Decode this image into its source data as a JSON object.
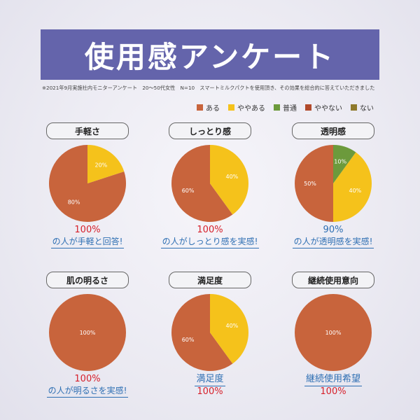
{
  "title": "使用感アンケート",
  "note": "※2021年9月実施社内モニターアンケート　20～50代女性　N=10　スマートミルクパクトを使用頂き、その効果を総合的に答えていただきました",
  "legend": [
    {
      "label": "ある",
      "color": "#c8643c"
    },
    {
      "label": "ややある",
      "color": "#f5c21b"
    },
    {
      "label": "普通",
      "color": "#6c9a3c"
    },
    {
      "label": "ややない",
      "color": "#b14a2b"
    },
    {
      "label": "ない",
      "color": "#8f7a2c"
    }
  ],
  "panels": [
    {
      "title": "手軽さ",
      "cap_a": "100%",
      "cap_b": "の人が手軽と回答!",
      "cap_a_class": "red",
      "cap_b_class": "blue"
    },
    {
      "title": "しっとり感",
      "cap_a": "100%",
      "cap_b": "の人がしっとり感を実感!",
      "cap_a_class": "red",
      "cap_b_class": "blue"
    },
    {
      "title": "透明感",
      "cap_a": "90%",
      "cap_b": "の人が透明感を実感!",
      "cap_a_class": "blue",
      "cap_b_class": "blue"
    },
    {
      "title": "肌の明るさ",
      "cap_a": "100%",
      "cap_b": "の人が明るさを実感!",
      "cap_a_class": "red",
      "cap_b_class": "blue"
    },
    {
      "title": "満足度",
      "cap_a": "満足度",
      "cap_b": "100%",
      "cap_a_class": "blue",
      "cap_b_class": "red"
    },
    {
      "title": "継続使用意向",
      "cap_a": "継続使用希望",
      "cap_b": "100%",
      "cap_a_class": "blue",
      "cap_b_class": "red"
    }
  ],
  "chart_data": [
    {
      "type": "pie",
      "title": "手軽さ",
      "categories": [
        "ある",
        "ややある"
      ],
      "values": [
        80,
        20
      ],
      "labels": [
        "80%",
        "20%"
      ],
      "colors": [
        "#c8643c",
        "#f5c21b"
      ]
    },
    {
      "type": "pie",
      "title": "しっとり感",
      "categories": [
        "ある",
        "ややある"
      ],
      "values": [
        60,
        40
      ],
      "labels": [
        "60%",
        "40%"
      ],
      "colors": [
        "#c8643c",
        "#f5c21b"
      ]
    },
    {
      "type": "pie",
      "title": "透明感",
      "categories": [
        "ある",
        "ややある",
        "普通"
      ],
      "values": [
        50,
        40,
        10
      ],
      "labels": [
        "50%",
        "40%",
        "10%"
      ],
      "colors": [
        "#c8643c",
        "#f5c21b",
        "#6c9a3c"
      ]
    },
    {
      "type": "pie",
      "title": "肌の明るさ",
      "categories": [
        "ある"
      ],
      "values": [
        100
      ],
      "labels": [
        "100%"
      ],
      "colors": [
        "#c8643c"
      ]
    },
    {
      "type": "pie",
      "title": "満足度",
      "categories": [
        "ある",
        "ややある"
      ],
      "values": [
        60,
        40
      ],
      "labels": [
        "60%",
        "40%"
      ],
      "colors": [
        "#c8643c",
        "#f5c21b"
      ]
    },
    {
      "type": "pie",
      "title": "継続使用意向",
      "categories": [
        "ある"
      ],
      "values": [
        100
      ],
      "labels": [
        "100%"
      ],
      "colors": [
        "#c8643c"
      ]
    }
  ]
}
